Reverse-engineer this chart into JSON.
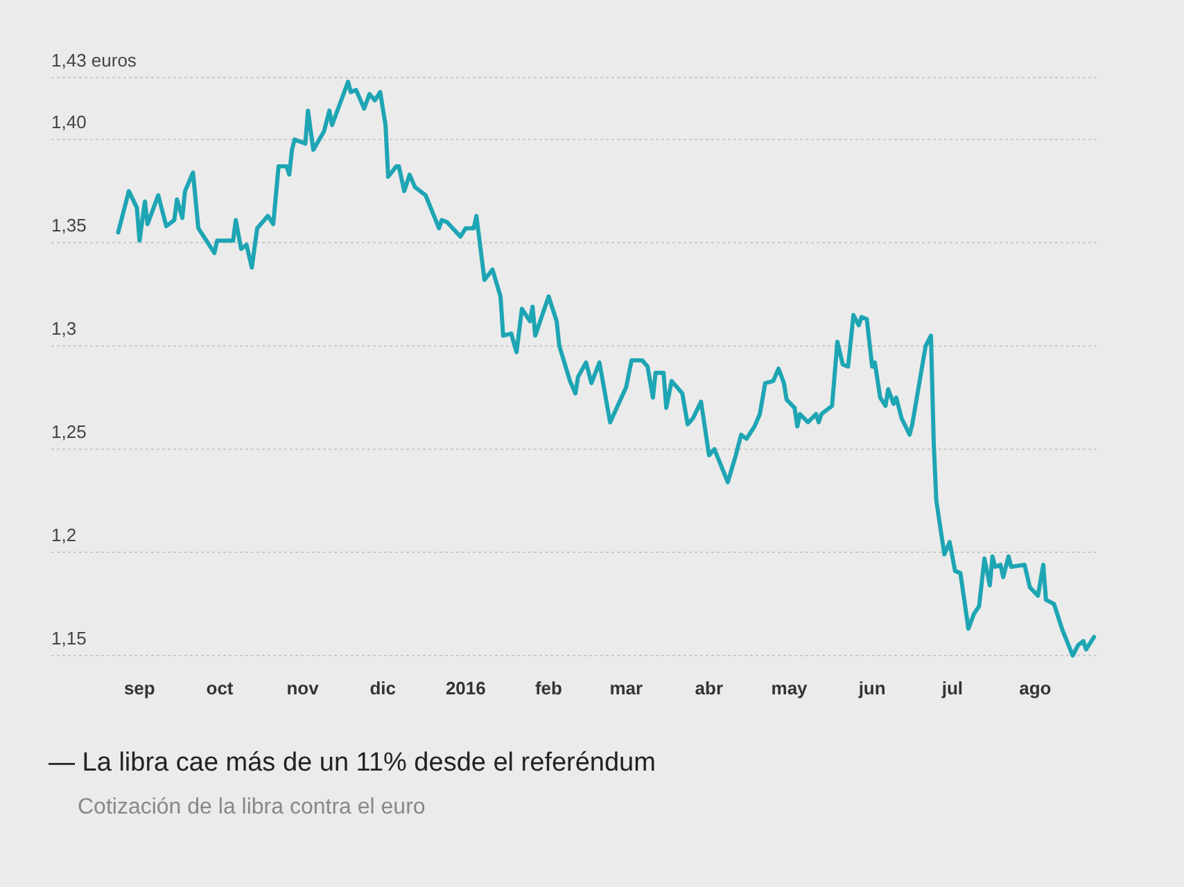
{
  "chart_data": {
    "type": "line",
    "title": "— La libra cae más de un 11% desde el referéndum",
    "subtitle": "Cotización de la libra contra el euro",
    "x": [
      "2015-08-24",
      "2015-08-28",
      "2015-08-31",
      "2015-09-01",
      "2015-09-03",
      "2015-09-04",
      "2015-09-08",
      "2015-09-11",
      "2015-09-14",
      "2015-09-15",
      "2015-09-17",
      "2015-09-18",
      "2015-09-21",
      "2015-09-23",
      "2015-09-29",
      "2015-09-30",
      "2015-10-06",
      "2015-10-07",
      "2015-10-09",
      "2015-10-11",
      "2015-10-13",
      "2015-10-15",
      "2015-10-19",
      "2015-10-21",
      "2015-10-23",
      "2015-10-26",
      "2015-10-27",
      "2015-10-28",
      "2015-10-29",
      "2015-11-02",
      "2015-11-03",
      "2015-11-05",
      "2015-11-09",
      "2015-11-11",
      "2015-11-12",
      "2015-11-16",
      "2015-11-18",
      "2015-11-19",
      "2015-11-21",
      "2015-11-24",
      "2015-11-26",
      "2015-11-28",
      "2015-11-30",
      "2015-12-02",
      "2015-12-03",
      "2015-12-06",
      "2015-12-07",
      "2015-12-09",
      "2015-12-11",
      "2015-12-13",
      "2015-12-17",
      "2015-12-22",
      "2015-12-23",
      "2015-12-25",
      "2015-12-30",
      "2016-01-01",
      "2016-01-04",
      "2016-01-05",
      "2016-01-08",
      "2016-01-11",
      "2016-01-14",
      "2016-01-15",
      "2016-01-18",
      "2016-01-20",
      "2016-01-22",
      "2016-01-25",
      "2016-01-26",
      "2016-01-27",
      "2016-02-01",
      "2016-02-04",
      "2016-02-05",
      "2016-02-09",
      "2016-02-11",
      "2016-02-12",
      "2016-02-15",
      "2016-02-17",
      "2016-02-20",
      "2016-02-24",
      "2016-03-01",
      "2016-03-03",
      "2016-03-07",
      "2016-03-09",
      "2016-03-11",
      "2016-03-12",
      "2016-03-15",
      "2016-03-16",
      "2016-03-18",
      "2016-03-22",
      "2016-03-24",
      "2016-03-26",
      "2016-03-29",
      "2016-04-01",
      "2016-04-03",
      "2016-04-08",
      "2016-04-11",
      "2016-04-13",
      "2016-04-15",
      "2016-04-18",
      "2016-04-20",
      "2016-04-22",
      "2016-04-25",
      "2016-04-27",
      "2016-04-29",
      "2016-04-30",
      "2016-05-03",
      "2016-05-04",
      "2016-05-05",
      "2016-05-08",
      "2016-05-11",
      "2016-05-12",
      "2016-05-13",
      "2016-05-17",
      "2016-05-19",
      "2016-05-21",
      "2016-05-23",
      "2016-05-25",
      "2016-05-27",
      "2016-05-28",
      "2016-05-30",
      "2016-06-01",
      "2016-06-02",
      "2016-06-04",
      "2016-06-06",
      "2016-06-07",
      "2016-06-09",
      "2016-06-10",
      "2016-06-12",
      "2016-06-15",
      "2016-06-16",
      "2016-06-21",
      "2016-06-23",
      "2016-06-24",
      "2016-06-25",
      "2016-06-28",
      "2016-06-30",
      "2016-07-02",
      "2016-07-04",
      "2016-07-07",
      "2016-07-09",
      "2016-07-11",
      "2016-07-13",
      "2016-07-15",
      "2016-07-16",
      "2016-07-17",
      "2016-07-19",
      "2016-07-20",
      "2016-07-22",
      "2016-07-23",
      "2016-07-28",
      "2016-07-30",
      "2016-08-02",
      "2016-08-04",
      "2016-08-05",
      "2016-08-08",
      "2016-08-11",
      "2016-08-15",
      "2016-08-17",
      "2016-08-19",
      "2016-08-20",
      "2016-08-23"
    ],
    "series": [
      {
        "color": "#1ea5b4",
        "values": [
          1.355,
          1.375,
          1.367,
          1.351,
          1.37,
          1.359,
          1.373,
          1.358,
          1.361,
          1.371,
          1.362,
          1.375,
          1.384,
          1.357,
          1.345,
          1.351,
          1.351,
          1.361,
          1.347,
          1.349,
          1.338,
          1.357,
          1.363,
          1.359,
          1.387,
          1.387,
          1.383,
          1.395,
          1.4,
          1.398,
          1.414,
          1.395,
          1.404,
          1.414,
          1.407,
          1.421,
          1.428,
          1.423,
          1.424,
          1.415,
          1.422,
          1.419,
          1.423,
          1.407,
          1.382,
          1.387,
          1.387,
          1.375,
          1.383,
          1.377,
          1.373,
          1.357,
          1.361,
          1.36,
          1.353,
          1.357,
          1.357,
          1.363,
          1.332,
          1.337,
          1.324,
          1.305,
          1.306,
          1.297,
          1.318,
          1.312,
          1.319,
          1.305,
          1.324,
          1.312,
          1.3,
          1.283,
          1.277,
          1.285,
          1.292,
          1.282,
          1.292,
          1.263,
          1.28,
          1.293,
          1.293,
          1.29,
          1.275,
          1.287,
          1.287,
          1.27,
          1.283,
          1.277,
          1.262,
          1.265,
          1.273,
          1.247,
          1.25,
          1.234,
          1.247,
          1.257,
          1.255,
          1.261,
          1.267,
          1.282,
          1.283,
          1.289,
          1.282,
          1.274,
          1.27,
          1.261,
          1.267,
          1.263,
          1.267,
          1.263,
          1.267,
          1.271,
          1.302,
          1.291,
          1.29,
          1.315,
          1.31,
          1.314,
          1.313,
          1.29,
          1.292,
          1.275,
          1.271,
          1.279,
          1.272,
          1.275,
          1.265,
          1.257,
          1.262,
          1.3,
          1.305,
          1.254,
          1.225,
          1.199,
          1.205,
          1.191,
          1.19,
          1.163,
          1.17,
          1.174,
          1.197,
          1.184,
          1.198,
          1.193,
          1.194,
          1.188,
          1.198,
          1.193,
          1.194,
          1.183,
          1.179,
          1.194,
          1.177,
          1.175,
          1.163,
          1.15,
          1.155,
          1.157,
          1.153,
          1.159
        ]
      }
    ],
    "xlim": [
      "2015-07-30",
      "2016-08-25"
    ],
    "xticks": [
      {
        "value": "2015-09-01",
        "label": "sep"
      },
      {
        "value": "2015-10-01",
        "label": "oct"
      },
      {
        "value": "2015-11-01",
        "label": "nov"
      },
      {
        "value": "2015-12-01",
        "label": "dic"
      },
      {
        "value": "2016-01-01",
        "label": "2016"
      },
      {
        "value": "2016-02-01",
        "label": "feb"
      },
      {
        "value": "2016-03-01",
        "label": "mar"
      },
      {
        "value": "2016-04-01",
        "label": "abr"
      },
      {
        "value": "2016-05-01",
        "label": "may"
      },
      {
        "value": "2016-06-01",
        "label": "jun"
      },
      {
        "value": "2016-07-01",
        "label": "jul"
      },
      {
        "value": "2016-08-01",
        "label": "ago"
      }
    ],
    "ylim": [
      1.15,
      1.43
    ],
    "yticks": [
      {
        "value": 1.15,
        "label": "1,15"
      },
      {
        "value": 1.2,
        "label": "1,2"
      },
      {
        "value": 1.25,
        "label": "1,25"
      },
      {
        "value": 1.3,
        "label": "1,3"
      },
      {
        "value": 1.35,
        "label": "1,35"
      },
      {
        "value": 1.4,
        "label": "1,40"
      },
      {
        "value": 1.43,
        "label": "1,43 euros"
      }
    ],
    "grid": "y",
    "line_style": "solid"
  }
}
